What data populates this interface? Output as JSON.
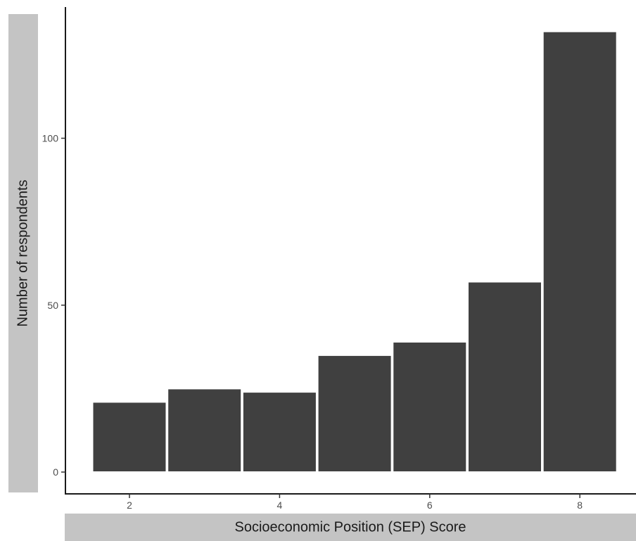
{
  "chart_data": {
    "type": "bar",
    "xlabel": "Socioeconomic Position (SEP) Score",
    "ylabel": "Number of respondents",
    "categories": [
      "2",
      "3",
      "4",
      "5",
      "6",
      "7",
      "8"
    ],
    "values": [
      21,
      25,
      24,
      35,
      39,
      57,
      132
    ],
    "x_ticks": [
      "2",
      "4",
      "6",
      "8"
    ],
    "y_ticks": [
      "0",
      "50",
      "100"
    ],
    "ylim": [
      0,
      138
    ],
    "bar_color": "#404040",
    "grid": false
  }
}
